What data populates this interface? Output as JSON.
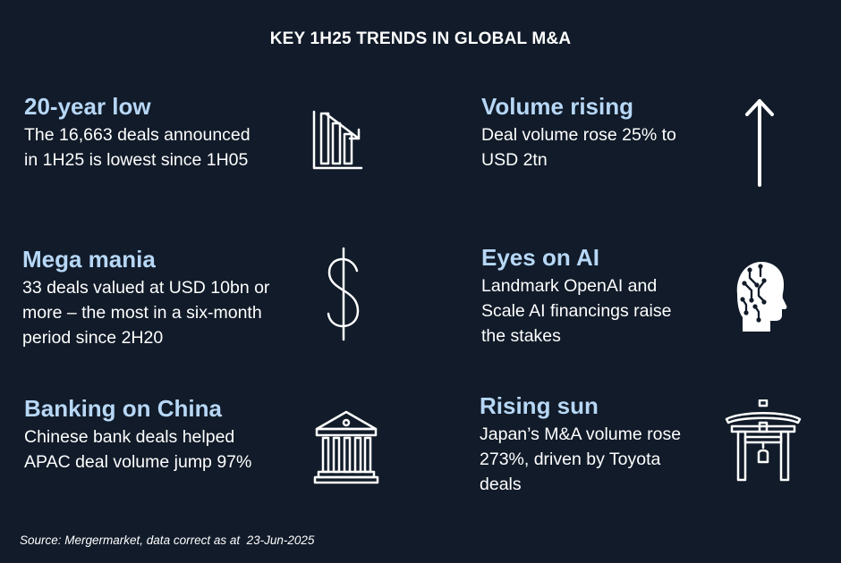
{
  "title": "KEY 1H25 TRENDS IN GLOBAL M&A",
  "trends": [
    {
      "heading": "20-year low",
      "lines": [
        "The 16,663 deals announced",
        "in 1H25 is lowest since 1H05"
      ],
      "icon": "declining-bar-chart-icon"
    },
    {
      "heading": "Volume rising",
      "lines": [
        "Deal volume rose 25% to",
        "USD 2tn"
      ],
      "icon": "up-arrow-icon"
    },
    {
      "heading": "Mega mania",
      "lines": [
        "33 deals valued at USD 10bn or",
        "more – the most in a six-month",
        "period since 2H20"
      ],
      "icon": "dollar-sign-icon"
    },
    {
      "heading": "Eyes on AI",
      "lines": [
        "Landmark OpenAI and",
        "Scale AI financings raise",
        "the stakes"
      ],
      "icon": "ai-head-icon"
    },
    {
      "heading": "Banking on China",
      "lines": [
        "Chinese bank deals helped",
        "APAC deal volume jump 97%"
      ],
      "icon": "bank-building-icon"
    },
    {
      "heading": "Rising sun",
      "lines": [
        "Japan’s M&A volume rose",
        "273%, driven by Toyota",
        "deals"
      ],
      "icon": "torii-gate-icon"
    }
  ],
  "source": "Source: Mergermarket, data correct as at  23-Jun-2025",
  "colors": {
    "background": "#111b29",
    "heading": "#b7d7f6",
    "text": "#ffffff"
  }
}
